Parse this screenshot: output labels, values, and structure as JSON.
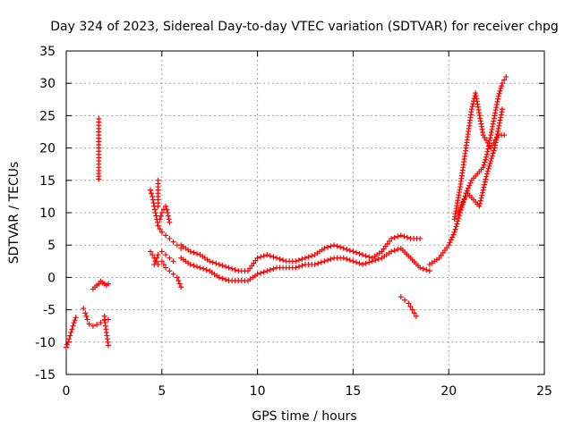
{
  "chart_data": {
    "type": "scatter",
    "title": "Day 324 of 2023, Sidereal Day-to-day VTEC variation (SDTVAR) for receiver chpg",
    "xlabel": "GPS time / hours",
    "ylabel": "SDTVAR / TECUs",
    "xlim": [
      0,
      25
    ],
    "ylim": [
      -15,
      35
    ],
    "xticks": [
      0,
      5,
      10,
      15,
      20,
      25
    ],
    "yticks": [
      -15,
      -10,
      -5,
      0,
      5,
      10,
      15,
      20,
      25,
      30,
      35
    ],
    "grid": true,
    "marker": "+",
    "colors": {
      "series": "#ff0000",
      "grid": "#a0a0a0",
      "axis": "#000000"
    },
    "series": [
      {
        "name": "seg-early-rise",
        "x": [
          0.0,
          0.1,
          0.2,
          0.3,
          0.4,
          0.5
        ],
        "y": [
          -10.8,
          -10.0,
          -9.0,
          -8.0,
          -7.0,
          -6.2
        ]
      },
      {
        "name": "seg-dip-1h",
        "x": [
          0.9,
          1.0,
          1.1,
          1.2,
          1.4,
          1.6,
          1.8,
          2.0,
          2.2
        ],
        "y": [
          -4.8,
          -5.5,
          -6.5,
          -7.2,
          -7.5,
          -7.3,
          -7.0,
          -6.6,
          -6.5
        ]
      },
      {
        "name": "seg-drop-2h",
        "x": [
          2.0,
          2.05,
          2.1,
          2.15,
          2.2
        ],
        "y": [
          -6.0,
          -7.5,
          -8.5,
          -9.5,
          -10.5
        ]
      },
      {
        "name": "seg-near-zero-1.5h",
        "x": [
          1.4,
          1.5,
          1.6,
          1.7,
          1.8,
          1.9,
          2.0,
          2.1,
          2.2
        ],
        "y": [
          -1.8,
          -1.5,
          -1.2,
          -1.0,
          -0.6,
          -0.8,
          -1.0,
          -1.2,
          -1.0
        ]
      },
      {
        "name": "seg-vertical-1.7h",
        "x": [
          1.7,
          1.7,
          1.7,
          1.7,
          1.7,
          1.7,
          1.7,
          1.7
        ],
        "y": [
          15.2,
          16.5,
          18.0,
          19.5,
          21.0,
          22.5,
          23.5,
          24.5
        ]
      },
      {
        "name": "seg-spike-4.5h",
        "x": [
          4.4,
          4.5,
          4.6,
          4.7,
          4.8,
          5.0,
          5.2,
          5.4,
          5.6,
          5.8,
          6.0
        ],
        "y": [
          13.5,
          12.5,
          11.0,
          9.5,
          8.0,
          7.0,
          6.5,
          6.0,
          5.5,
          5.0,
          4.5
        ]
      },
      {
        "name": "seg-vertical-4.8h",
        "x": [
          4.8,
          4.8,
          4.8,
          4.8,
          4.8
        ],
        "y": [
          11.0,
          12.0,
          13.0,
          14.0,
          15.0
        ]
      },
      {
        "name": "seg-bump-5h",
        "x": [
          4.9,
          5.0,
          5.1,
          5.2,
          5.3,
          5.4
        ],
        "y": [
          9.0,
          10.0,
          10.5,
          11.0,
          10.0,
          8.5
        ]
      },
      {
        "name": "seg-low-5h",
        "x": [
          4.4,
          4.6,
          4.8,
          5.0,
          5.2,
          5.4,
          5.6,
          5.8,
          6.0
        ],
        "y": [
          4.0,
          3.0,
          2.0,
          2.5,
          1.5,
          1.0,
          0.5,
          0.0,
          -1.5
        ]
      },
      {
        "name": "seg-arc-5-6h",
        "x": [
          4.6,
          4.8,
          5.0,
          5.2,
          5.4,
          5.6
        ],
        "y": [
          2.0,
          3.5,
          4.0,
          3.5,
          3.0,
          2.5
        ]
      },
      {
        "name": "main-band-upper",
        "x": [
          6.0,
          6.5,
          7.0,
          7.5,
          8.0,
          8.5,
          9.0,
          9.5,
          10.0,
          10.5,
          11.0,
          11.5,
          12.0,
          12.5,
          13.0,
          13.5,
          14.0,
          14.5,
          15.0,
          15.5,
          16.0,
          16.5,
          17.0,
          17.5,
          18.0,
          18.5
        ],
        "y": [
          5.0,
          4.0,
          3.5,
          2.5,
          2.0,
          1.5,
          1.0,
          1.0,
          3.0,
          3.5,
          3.0,
          2.5,
          2.5,
          3.0,
          3.5,
          4.5,
          5.0,
          4.5,
          4.0,
          3.5,
          3.0,
          4.0,
          6.0,
          6.5,
          6.0,
          6.0
        ]
      },
      {
        "name": "main-band-lower",
        "x": [
          6.0,
          6.5,
          7.0,
          7.5,
          8.0,
          8.5,
          9.0,
          9.5,
          10.0,
          10.5,
          11.0,
          11.5,
          12.0,
          12.5,
          13.0,
          13.5,
          14.0,
          14.5,
          15.0,
          15.5,
          16.0,
          16.5,
          17.0,
          17.5,
          18.0,
          18.5,
          19.0
        ],
        "y": [
          3.0,
          2.0,
          1.5,
          1.0,
          0.0,
          -0.5,
          -0.5,
          -0.5,
          0.5,
          1.0,
          1.5,
          1.5,
          1.5,
          2.0,
          2.0,
          2.5,
          3.0,
          3.0,
          2.5,
          2.0,
          2.5,
          3.0,
          4.0,
          4.5,
          3.0,
          1.5,
          1.0
        ]
      },
      {
        "name": "seg-drop-17.5h",
        "x": [
          17.5,
          17.7,
          17.9,
          18.0,
          18.1,
          18.2,
          18.3
        ],
        "y": [
          -3.0,
          -3.5,
          -4.0,
          -4.5,
          -5.0,
          -5.5,
          -6.0
        ]
      },
      {
        "name": "rise-late-a",
        "x": [
          19.0,
          19.5,
          20.0,
          20.3,
          20.6,
          20.9,
          21.2,
          21.5,
          21.8,
          22.0,
          22.2,
          22.4,
          22.6,
          22.8,
          23.0
        ],
        "y": [
          2.0,
          3.0,
          5.0,
          7.0,
          10.0,
          13.0,
          15.0,
          16.0,
          17.0,
          19.0,
          22.0,
          25.0,
          28.0,
          30.0,
          31.0
        ]
      },
      {
        "name": "rise-late-b",
        "x": [
          20.3,
          20.6,
          20.9,
          21.2,
          21.4,
          21.8,
          22.2,
          22.6,
          22.9
        ],
        "y": [
          9.0,
          14.0,
          20.0,
          26.0,
          28.5,
          22.0,
          20.0,
          22.0,
          22.0
        ]
      },
      {
        "name": "rise-late-c",
        "x": [
          20.5,
          20.8,
          21.0,
          21.3,
          21.6,
          22.0,
          22.4,
          22.8
        ],
        "y": [
          10.0,
          12.0,
          13.0,
          12.0,
          11.0,
          16.0,
          20.0,
          26.0
        ]
      }
    ]
  }
}
